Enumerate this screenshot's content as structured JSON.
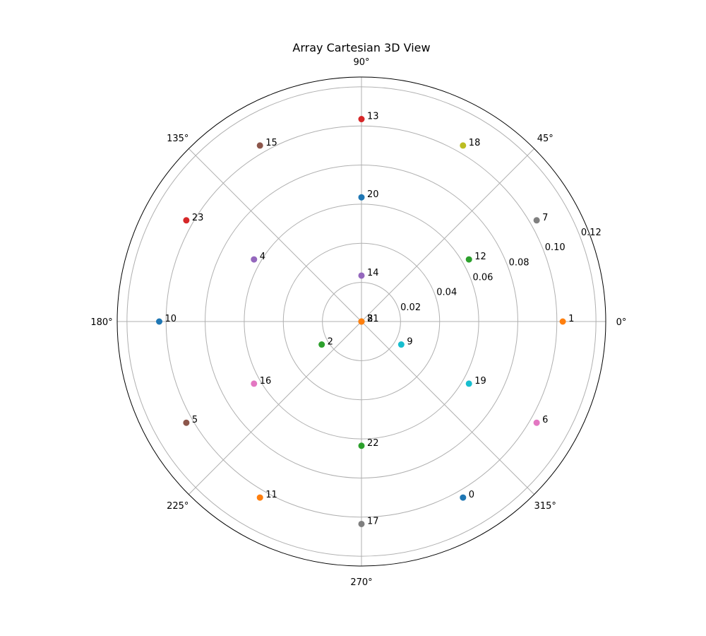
{
  "chart_data": {
    "type": "scatter",
    "projection": "polar",
    "title": "Array Cartesian 3D View",
    "theta_tick_labels": [
      "0°",
      "45°",
      "90°",
      "135°",
      "180°",
      "225°",
      "270°",
      "315°"
    ],
    "theta_ticks_deg": [
      0,
      45,
      90,
      135,
      180,
      225,
      270,
      315
    ],
    "r_ticks": [
      0.02,
      0.04,
      0.06,
      0.08,
      0.1,
      0.12
    ],
    "r_tick_labels": [
      "0.02",
      "0.04",
      "0.06",
      "0.08",
      "0.10",
      "0.12"
    ],
    "rlim": [
      0,
      0.125
    ],
    "r_label_angle_deg": 22.5,
    "grid": true,
    "points": [
      {
        "label": "0",
        "theta_deg": 300.0,
        "r": 0.1039,
        "color": "#1f77b4"
      },
      {
        "label": "1",
        "theta_deg": 0.0,
        "r": 0.103,
        "color": "#ff7f0e"
      },
      {
        "label": "2",
        "theta_deg": 210.0,
        "r": 0.0235,
        "color": "#2ca02c"
      },
      {
        "label": "3",
        "theta_deg": 0.0,
        "r": 0.0,
        "color": "#d62728"
      },
      {
        "label": "4",
        "theta_deg": 150.0,
        "r": 0.0635,
        "color": "#9467bd"
      },
      {
        "label": "5",
        "theta_deg": 210.0,
        "r": 0.1035,
        "color": "#8c564b"
      },
      {
        "label": "6",
        "theta_deg": 330.0,
        "r": 0.1035,
        "color": "#e377c2"
      },
      {
        "label": "7",
        "theta_deg": 30.0,
        "r": 0.1035,
        "color": "#7f7f7f"
      },
      {
        "label": "8",
        "theta_deg": 0.0,
        "r": 0.0,
        "color": "#bcbd22"
      },
      {
        "label": "9",
        "theta_deg": 330.0,
        "r": 0.0235,
        "color": "#17becf"
      },
      {
        "label": "10",
        "theta_deg": 180.0,
        "r": 0.1035,
        "color": "#1f77b4"
      },
      {
        "label": "11",
        "theta_deg": 240.0,
        "r": 0.1039,
        "color": "#ff7f0e"
      },
      {
        "label": "12",
        "theta_deg": 30.0,
        "r": 0.0635,
        "color": "#2ca02c"
      },
      {
        "label": "13",
        "theta_deg": 90.0,
        "r": 0.1035,
        "color": "#d62728"
      },
      {
        "label": "14",
        "theta_deg": 90.0,
        "r": 0.0235,
        "color": "#9467bd"
      },
      {
        "label": "15",
        "theta_deg": 120.0,
        "r": 0.1039,
        "color": "#8c564b"
      },
      {
        "label": "16",
        "theta_deg": 210.0,
        "r": 0.0635,
        "color": "#e377c2"
      },
      {
        "label": "17",
        "theta_deg": 270.0,
        "r": 0.1035,
        "color": "#7f7f7f"
      },
      {
        "label": "18",
        "theta_deg": 60.0,
        "r": 0.1039,
        "color": "#bcbd22"
      },
      {
        "label": "19",
        "theta_deg": 330.0,
        "r": 0.0635,
        "color": "#17becf"
      },
      {
        "label": "20",
        "theta_deg": 90.0,
        "r": 0.0635,
        "color": "#1f77b4"
      },
      {
        "label": "21",
        "theta_deg": 0.0,
        "r": 0.0,
        "color": "#ff7f0e"
      },
      {
        "label": "22",
        "theta_deg": 270.0,
        "r": 0.0635,
        "color": "#2ca02c"
      },
      {
        "label": "23",
        "theta_deg": 150.0,
        "r": 0.1035,
        "color": "#d62728"
      }
    ]
  }
}
